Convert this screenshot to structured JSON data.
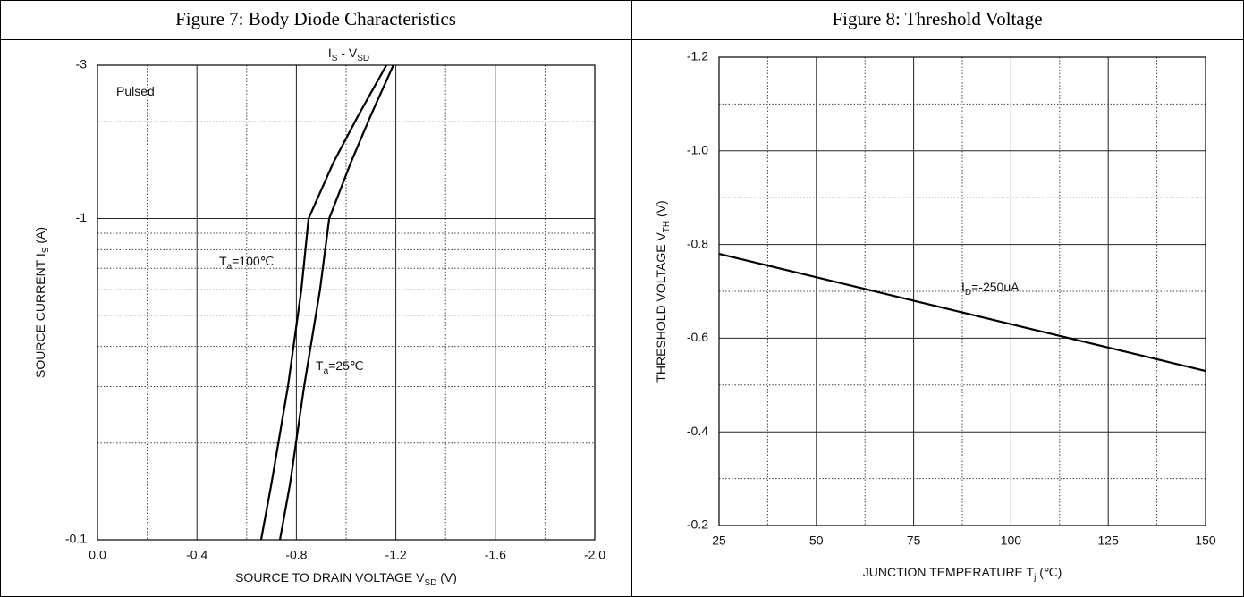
{
  "chart_data": [
    {
      "type": "line",
      "title": "Figure 7: Body Diode Characteristics",
      "subtitle": [
        "I",
        "S",
        " - V",
        "SD"
      ],
      "xlabel": [
        "SOURCE TO DRAIN VOLTAGE V",
        "SD",
        " (V)"
      ],
      "ylabel": [
        "SOURCE CURRENT I",
        "S",
        " (A)"
      ],
      "y_scale": "log",
      "grid": true,
      "xlim": [
        0,
        -2
      ],
      "xticks": [
        {
          "value": 0,
          "label": "0.0"
        },
        -0.4,
        -0.8,
        -1.2,
        -1.6,
        {
          "value": -2,
          "label": "-2.0"
        }
      ],
      "x_minor_ticks": [
        -0.2,
        -0.6,
        -1.0,
        -1.4,
        -1.8
      ],
      "ylim": [
        -0.1,
        -3
      ],
      "yticks": [
        -3,
        -1,
        -0.1
      ],
      "y_minor_ticks": [
        -0.2,
        -0.3,
        -0.4,
        -0.5,
        -0.6,
        -0.7,
        -0.8,
        -0.9,
        -2
      ],
      "series": [
        {
          "name": [
            "T",
            "a",
            "=100℃"
          ],
          "color": "#000000",
          "x": [
            -0.658,
            -0.7,
            -0.766,
            -0.82,
            -0.849,
            -0.95,
            -1.05,
            -1.162
          ],
          "values": [
            -0.1,
            -0.15,
            -0.3,
            -0.6,
            -1,
            -1.5,
            -2.1,
            -3
          ]
        },
        {
          "name": [
            "T",
            "a",
            "=25℃"
          ],
          "color": "#000000",
          "x": [
            -0.734,
            -0.775,
            -0.831,
            -0.895,
            -0.932,
            -1.02,
            -1.1,
            -1.19
          ],
          "values": [
            -0.1,
            -0.15,
            -0.3,
            -0.6,
            -1,
            -1.5,
            -2.1,
            -3
          ]
        }
      ],
      "annotations": [
        [
          "Pulsed"
        ]
      ]
    },
    {
      "type": "line",
      "title": "Figure 8: Threshold Voltage",
      "xlabel": [
        "JUNCTION TEMPERATURE T",
        "j",
        " (℃)"
      ],
      "ylabel": [
        "THRESHOLD VOLTAGE V",
        "TH",
        " (V)"
      ],
      "grid": true,
      "xlim": [
        25,
        150
      ],
      "xticks": [
        25,
        50,
        75,
        100,
        125,
        150
      ],
      "x_minor_ticks": [
        37.5,
        62.5,
        87.5,
        112.5,
        137.5
      ],
      "ylim": [
        -0.2,
        -1.2
      ],
      "yticks": [
        -1.2,
        {
          "value": -1,
          "label": "-1.0"
        },
        -0.8,
        -0.6,
        -0.4,
        -0.2
      ],
      "y_minor_ticks": [
        -1.1,
        -0.9,
        -0.7,
        -0.5,
        -0.3
      ],
      "series": [
        {
          "color": "#000000",
          "x": [
            25,
            150
          ],
          "values": [
            -0.78,
            -0.53
          ]
        }
      ],
      "annotations": [
        [
          "I",
          "D",
          "=-250uA"
        ]
      ]
    }
  ]
}
